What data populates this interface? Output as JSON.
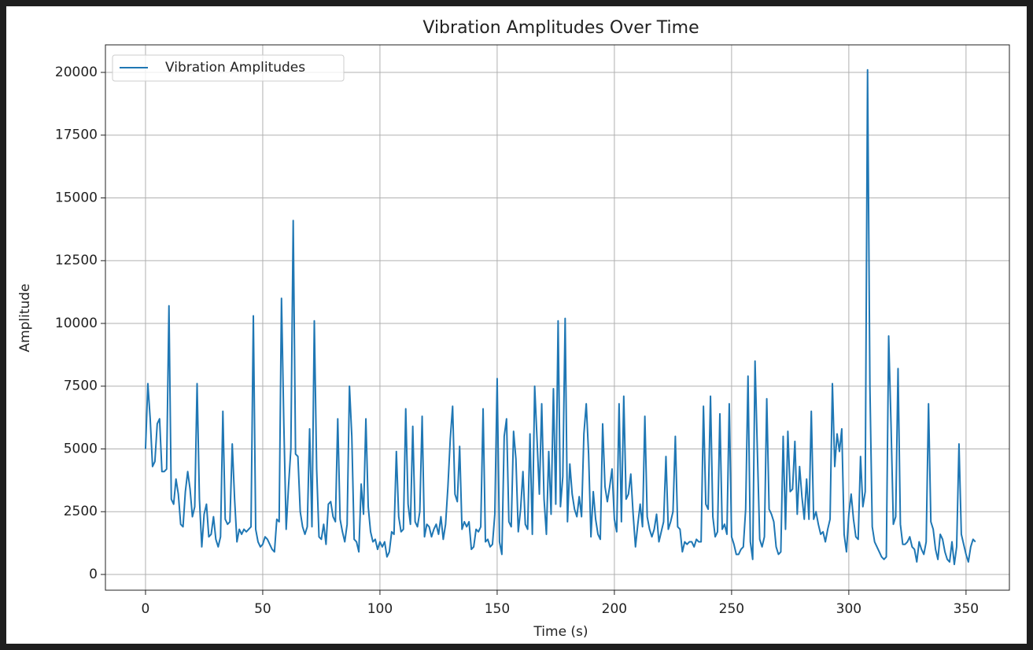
{
  "chart_data": {
    "type": "line",
    "title": "Vibration Amplitudes Over Time",
    "xlabel": "Time (s)",
    "ylabel": "Amplitude",
    "x": [
      0,
      1,
      2,
      3,
      4,
      5,
      6,
      7,
      8,
      9,
      10,
      11,
      12,
      13,
      14,
      15,
      16,
      17,
      18,
      19,
      20,
      21,
      22,
      23,
      24,
      25,
      26,
      27,
      28,
      29,
      30,
      31,
      32,
      33,
      34,
      35,
      36,
      37,
      38,
      39,
      40,
      41,
      42,
      43,
      44,
      45,
      46,
      47,
      48,
      49,
      50,
      51,
      52,
      53,
      54,
      55,
      56,
      57,
      58,
      59,
      60,
      61,
      62,
      63,
      64,
      65,
      66,
      67,
      68,
      69,
      70,
      71,
      72,
      73,
      74,
      75,
      76,
      77,
      78,
      79,
      80,
      81,
      82,
      83,
      84,
      85,
      86,
      87,
      88,
      89,
      90,
      91,
      92,
      93,
      94,
      95,
      96,
      97,
      98,
      99,
      100,
      101,
      102,
      103,
      104,
      105,
      106,
      107,
      108,
      109,
      110,
      111,
      112,
      113,
      114,
      115,
      116,
      117,
      118,
      119,
      120,
      121,
      122,
      123,
      124,
      125,
      126,
      127,
      128,
      129,
      130,
      131,
      132,
      133,
      134,
      135,
      136,
      137,
      138,
      139,
      140,
      141,
      142,
      143,
      144,
      145,
      146,
      147,
      148,
      149,
      150,
      151,
      152,
      153,
      154,
      155,
      156,
      157,
      158,
      159,
      160,
      161,
      162,
      163,
      164,
      165,
      166,
      167,
      168,
      169,
      170,
      171,
      172,
      173,
      174,
      175,
      176,
      177,
      178,
      179,
      180,
      181,
      182,
      183,
      184,
      185,
      186,
      187,
      188,
      189,
      190,
      191,
      192,
      193,
      194,
      195,
      196,
      197,
      198,
      199,
      200,
      201,
      202,
      203,
      204,
      205,
      206,
      207,
      208,
      209,
      210,
      211,
      212,
      213,
      214,
      215,
      216,
      217,
      218,
      219,
      220,
      221,
      222,
      223,
      224,
      225,
      226,
      227,
      228,
      229,
      230,
      231,
      232,
      233,
      234,
      235,
      236,
      237,
      238,
      239,
      240,
      241,
      242,
      243,
      244,
      245,
      246,
      247,
      248,
      249,
      250,
      251,
      252,
      253,
      254,
      255,
      256,
      257,
      258,
      259,
      260,
      261,
      262,
      263,
      264,
      265,
      266,
      267,
      268,
      269,
      270,
      271,
      272,
      273,
      274,
      275,
      276,
      277,
      278,
      279,
      280,
      281,
      282,
      283,
      284,
      285,
      286,
      287,
      288,
      289,
      290,
      291,
      292,
      293,
      294,
      295,
      296,
      297,
      298,
      299,
      300,
      301,
      302,
      303,
      304,
      305,
      306,
      307,
      308,
      309,
      310,
      311,
      312,
      313,
      314,
      315,
      316,
      317,
      318,
      319,
      320,
      321,
      322,
      323,
      324,
      325,
      326,
      327,
      328,
      329,
      330,
      331,
      332,
      333,
      334,
      335,
      336,
      337,
      338,
      339,
      340,
      341,
      342,
      343,
      344,
      345,
      346,
      347,
      348,
      349,
      350,
      351,
      352,
      353,
      354
    ],
    "series": [
      {
        "name": "Vibration Amplitudes",
        "color": "#1f77b4",
        "values": [
          5000,
          7600,
          6200,
          4300,
          4500,
          6000,
          6200,
          4100,
          4100,
          4200,
          10700,
          3000,
          2800,
          3800,
          3200,
          2000,
          1900,
          3300,
          4100,
          3400,
          2300,
          2700,
          7600,
          3000,
          1100,
          2400,
          2800,
          1500,
          1600,
          2300,
          1400,
          1100,
          1500,
          6500,
          2200,
          2000,
          2100,
          5200,
          3000,
          1300,
          1800,
          1600,
          1800,
          1700,
          1800,
          1900,
          10300,
          1800,
          1300,
          1100,
          1200,
          1500,
          1400,
          1200,
          1000,
          900,
          2200,
          2100,
          11000,
          6000,
          1800,
          3500,
          5000,
          14100,
          4800,
          4700,
          2500,
          1900,
          1600,
          1900,
          5800,
          1900,
          10100,
          4200,
          1500,
          1400,
          2000,
          1200,
          2800,
          2900,
          2300,
          2100,
          6200,
          2200,
          1700,
          1300,
          2000,
          7500,
          5500,
          1400,
          1300,
          900,
          3600,
          2400,
          6200,
          2700,
          1700,
          1300,
          1400,
          1000,
          1300,
          1100,
          1300,
          700,
          900,
          1700,
          1600,
          4900,
          2300,
          1700,
          1800,
          6600,
          2800,
          2000,
          5900,
          2100,
          1900,
          2500,
          6300,
          1500,
          2000,
          1900,
          1500,
          1800,
          2000,
          1600,
          2300,
          1400,
          2000,
          3500,
          5400,
          6700,
          3200,
          2900,
          5100,
          1800,
          2100,
          1900,
          2100,
          1000,
          1100,
          1800,
          1700,
          1900,
          6600,
          1300,
          1400,
          1100,
          1200,
          2400,
          7800,
          1300,
          800,
          5500,
          6200,
          2100,
          1900,
          5700,
          4600,
          1700,
          2600,
          4100,
          2000,
          1800,
          5600,
          1600,
          7500,
          5400,
          3200,
          6800,
          3000,
          1600,
          4900,
          2400,
          7400,
          2800,
          10100,
          2700,
          3900,
          10200,
          2100,
          4400,
          3200,
          2600,
          2300,
          3100,
          2300,
          5600,
          6800,
          4800,
          1500,
          3300,
          2200,
          1600,
          1400,
          6000,
          3500,
          2900,
          3500,
          4200,
          2200,
          1700,
          6800,
          2100,
          7100,
          3000,
          3200,
          4000,
          2400,
          1100,
          2000,
          2800,
          1900,
          6300,
          2300,
          1800,
          1500,
          1800,
          2400,
          1300,
          1700,
          2100,
          4700,
          1800,
          2100,
          2500,
          5500,
          1900,
          1800,
          900,
          1300,
          1200,
          1300,
          1300,
          1100,
          1400,
          1300,
          1300,
          6700,
          2800,
          2600,
          7100,
          2300,
          1500,
          1700,
          6400,
          1800,
          2000,
          1600,
          6800,
          1500,
          1200,
          800,
          800,
          1000,
          1100,
          2600,
          7900,
          1300,
          600,
          8500,
          4900,
          1400,
          1100,
          1500,
          7000,
          2600,
          2400,
          2100,
          1100,
          800,
          900,
          5500,
          1800,
          5700,
          3300,
          3400,
          5300,
          2400,
          4300,
          3100,
          2200,
          3800,
          2200,
          6500,
          2200,
          2500,
          2000,
          1600,
          1700,
          1300,
          1800,
          2200,
          7600,
          4300,
          5600,
          4900,
          5800,
          1600,
          900,
          2400,
          3200,
          2200,
          1500,
          1400,
          4700,
          2700,
          3300,
          20100,
          7500,
          1900,
          1300,
          1100,
          900,
          700,
          600,
          700,
          9500,
          6000,
          2000,
          2300,
          8200,
          2000,
          1200,
          1200,
          1300,
          1500,
          1100,
          1000,
          500,
          1300,
          1000,
          800,
          1300,
          6800,
          2100,
          1800,
          1000,
          600,
          1600,
          1400,
          900,
          600,
          500,
          1300,
          400,
          1100,
          5200,
          1600,
          1200,
          800,
          500,
          1100,
          1400,
          1300
        ]
      }
    ],
    "xlim": [
      -17.1,
      368.5
    ],
    "ylim": [
      -627,
      21097
    ],
    "xticks": [
      0,
      50,
      100,
      150,
      200,
      250,
      300,
      350
    ],
    "yticks": [
      0,
      2500,
      5000,
      7500,
      10000,
      12500,
      15000,
      17500,
      20000
    ],
    "grid": true,
    "legend": "upper left"
  }
}
